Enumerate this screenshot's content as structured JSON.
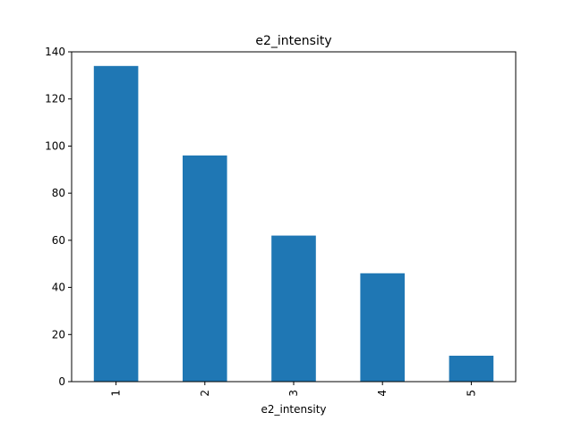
{
  "chart_data": {
    "type": "bar",
    "title": "e2_intensity",
    "xlabel": "e2_intensity",
    "ylabel": "",
    "categories": [
      "1",
      "2",
      "3",
      "4",
      "5"
    ],
    "values": [
      134,
      96,
      62,
      46,
      11
    ],
    "ylim": [
      0,
      140
    ],
    "yticks": [
      0,
      20,
      40,
      60,
      80,
      100,
      120,
      140
    ],
    "grid": false,
    "legend": "none",
    "bar_color": "#1f77b4"
  }
}
